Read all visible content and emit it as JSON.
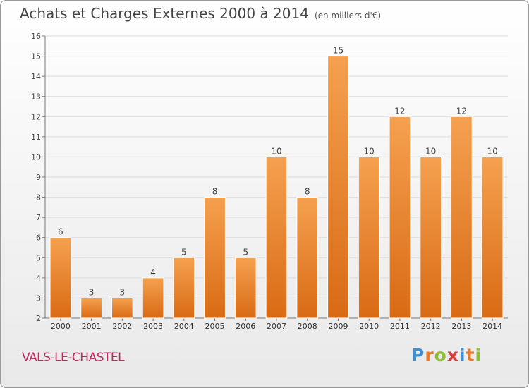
{
  "title": "Achats et Charges Externes 2000 à 2014",
  "subtitle": "(en milliers d'€)",
  "commune": "VALS-LE-CHASTEL",
  "brand": {
    "text": "Proxiti",
    "letter_colors": [
      "#3a8fd6",
      "#e8782a",
      "#8bbf2e",
      "#d73a3a",
      "#3a8fd6",
      "#e8782a",
      "#8bbf2e"
    ]
  },
  "chart_data": {
    "type": "bar",
    "categories": [
      "2000",
      "2001",
      "2002",
      "2003",
      "2004",
      "2005",
      "2006",
      "2007",
      "2008",
      "2009",
      "2010",
      "2011",
      "2012",
      "2013",
      "2014"
    ],
    "values": [
      6,
      3,
      3,
      4,
      5,
      8,
      5,
      10,
      8,
      15,
      10,
      12,
      10,
      12,
      10
    ],
    "ylim": [
      2,
      16
    ],
    "yticks": [
      2,
      3,
      4,
      5,
      6,
      7,
      8,
      9,
      10,
      11,
      12,
      13,
      14,
      15,
      16
    ],
    "grid": true,
    "bar_color_top": "#f5a14f",
    "bar_color_bottom": "#d96a14"
  }
}
